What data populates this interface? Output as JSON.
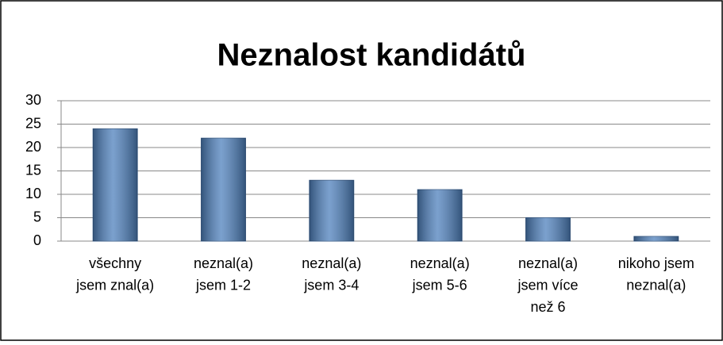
{
  "chart_data": {
    "type": "bar",
    "title": "Neznalost kandidátů",
    "categories": [
      [
        "všechny",
        "jsem znal(a)"
      ],
      [
        "neznal(a)",
        "jsem 1-2"
      ],
      [
        "neznal(a)",
        "jsem 3-4"
      ],
      [
        "neznal(a)",
        "jsem 5-6"
      ],
      [
        "neznal(a)",
        "jsem více",
        "než 6"
      ],
      [
        "nikoho jsem",
        "neznal(a)"
      ]
    ],
    "values": [
      24,
      22,
      13,
      11,
      5,
      1
    ],
    "color": "#4f81bd",
    "ylim": [
      0,
      30
    ],
    "yticks": [
      0,
      5,
      10,
      15,
      20,
      25,
      30
    ],
    "grid": true
  }
}
